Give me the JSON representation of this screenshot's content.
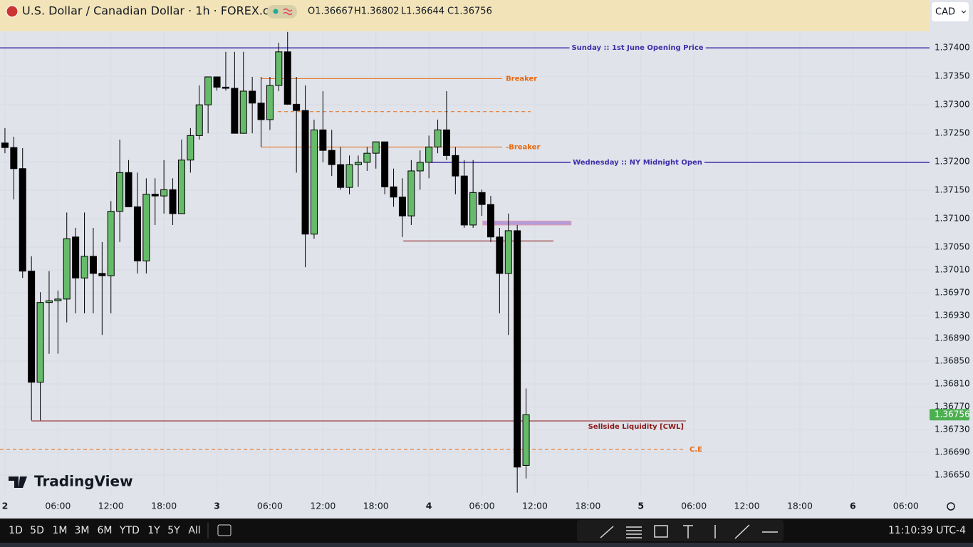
{
  "header": {
    "title": "U.S. Dollar / Canadian Dollar · 1h · FOREX.com",
    "ohlc": [
      "O1.36667",
      "H1.36802",
      "L1.36644",
      "C1.36756"
    ],
    "currency": "CAD"
  },
  "watermark": "TradingView",
  "toolbar": {
    "periods": [
      "1D",
      "5D",
      "1M",
      "3M",
      "6M",
      "YTD",
      "1Y",
      "5Y",
      "All"
    ],
    "clock": "11:10:39 UTC-4"
  },
  "chart_data": {
    "type": "candlestick",
    "up_color": "#66bb6a",
    "down_color": "#000000",
    "grid": true,
    "x": [
      0,
      1,
      2,
      3,
      4,
      5,
      6,
      7,
      8,
      9,
      10,
      11,
      12,
      13,
      14,
      15,
      16,
      17,
      18,
      19,
      20,
      21,
      22,
      23,
      24,
      25,
      26,
      27,
      28,
      29,
      30,
      31,
      32,
      33,
      34,
      35,
      36,
      37,
      38,
      39,
      40,
      41,
      42,
      43,
      44,
      45,
      46,
      47,
      48,
      49,
      50,
      51,
      52,
      53,
      54,
      55,
      56,
      57,
      58,
      59
    ],
    "ohlc": [
      [
        1.37233,
        1.37259,
        1.37215,
        1.37225
      ],
      [
        1.37225,
        1.37244,
        1.37134,
        1.37188
      ],
      [
        1.37188,
        1.37224,
        1.36996,
        1.37008
      ],
      [
        1.37008,
        1.37034,
        1.36746,
        1.36813
      ],
      [
        1.36813,
        1.36971,
        1.36746,
        1.36953
      ],
      [
        1.36953,
        1.37008,
        1.36863,
        1.36956
      ],
      [
        1.36956,
        1.36974,
        1.36863,
        1.36959
      ],
      [
        1.36959,
        1.37111,
        1.36918,
        1.37065
      ],
      [
        1.37068,
        1.37084,
        1.36934,
        1.36996
      ],
      [
        1.36996,
        1.37111,
        1.36934,
        1.37034
      ],
      [
        1.37034,
        1.37084,
        1.36934,
        1.37004
      ],
      [
        1.37004,
        1.37059,
        1.36896,
        1.37
      ],
      [
        1.37,
        1.37131,
        1.36934,
        1.37113
      ],
      [
        1.37113,
        1.37239,
        1.37059,
        1.37181
      ],
      [
        1.37181,
        1.37203,
        1.37121,
        1.37121
      ],
      [
        1.37121,
        1.37181,
        1.37004,
        1.37026
      ],
      [
        1.37026,
        1.37171,
        1.37004,
        1.37143
      ],
      [
        1.37143,
        1.37171,
        1.37089,
        1.3714
      ],
      [
        1.3714,
        1.37203,
        1.37109,
        1.37151
      ],
      [
        1.37151,
        1.37171,
        1.37089,
        1.37109
      ],
      [
        1.37109,
        1.37239,
        1.37109,
        1.37203
      ],
      [
        1.37203,
        1.37259,
        1.37181,
        1.37246
      ],
      [
        1.37246,
        1.37334,
        1.37239,
        1.373
      ],
      [
        1.373,
        1.37349,
        1.3725,
        1.37349
      ],
      [
        1.37349,
        1.37349,
        1.37325,
        1.37331
      ],
      [
        1.37331,
        1.37393,
        1.37325,
        1.37329
      ],
      [
        1.37329,
        1.37393,
        1.3725,
        1.3725
      ],
      [
        1.3725,
        1.37393,
        1.3725,
        1.37324
      ],
      [
        1.37324,
        1.37349,
        1.3725,
        1.37303
      ],
      [
        1.37303,
        1.37349,
        1.37226,
        1.37274
      ],
      [
        1.37274,
        1.37349,
        1.37256,
        1.37334
      ],
      [
        1.37334,
        1.37409,
        1.37324,
        1.37393
      ],
      [
        1.37393,
        1.37428,
        1.373,
        1.37301
      ],
      [
        1.37301,
        1.37349,
        1.37181,
        1.3729
      ],
      [
        1.3729,
        1.37334,
        1.37015,
        1.37073
      ],
      [
        1.37073,
        1.37274,
        1.37065,
        1.37256
      ],
      [
        1.37256,
        1.37324,
        1.37199,
        1.3722
      ],
      [
        1.3722,
        1.37256,
        1.37175,
        1.37195
      ],
      [
        1.37195,
        1.37226,
        1.37151,
        1.37155
      ],
      [
        1.37155,
        1.37211,
        1.37143,
        1.37195
      ],
      [
        1.37195,
        1.37211,
        1.37156,
        1.37199
      ],
      [
        1.37199,
        1.37226,
        1.37184,
        1.37215
      ],
      [
        1.37215,
        1.37235,
        1.37188,
        1.37235
      ],
      [
        1.37235,
        1.37235,
        1.37143,
        1.37156
      ],
      [
        1.37156,
        1.37188,
        1.37121,
        1.37138
      ],
      [
        1.37138,
        1.37171,
        1.37068,
        1.37105
      ],
      [
        1.37105,
        1.37203,
        1.37089,
        1.37184
      ],
      [
        1.37184,
        1.3722,
        1.37151,
        1.37199
      ],
      [
        1.37199,
        1.37246,
        1.37171,
        1.37226
      ],
      [
        1.37226,
        1.37274,
        1.37215,
        1.37256
      ],
      [
        1.37256,
        1.37324,
        1.37203,
        1.37211
      ],
      [
        1.37211,
        1.37226,
        1.37143,
        1.37175
      ],
      [
        1.37175,
        1.37203,
        1.37084,
        1.37089
      ],
      [
        1.37089,
        1.37203,
        1.37084,
        1.37146
      ],
      [
        1.37146,
        1.37151,
        1.37105,
        1.37125
      ],
      [
        1.37125,
        1.3714,
        1.37059,
        1.37068
      ],
      [
        1.37068,
        1.37084,
        1.36934,
        1.37004
      ],
      [
        1.37004,
        1.37109,
        1.36896,
        1.37079
      ],
      [
        1.37079,
        1.37089,
        1.36619,
        1.36664
      ],
      [
        1.36667,
        1.36802,
        1.36644,
        1.36756
      ]
    ],
    "xlim": [
      -0.56,
      104.68
    ],
    "xticks": [
      {
        "value": 0,
        "label": "2"
      },
      {
        "value": 6,
        "label": "06:00"
      },
      {
        "value": 12,
        "label": "12:00"
      },
      {
        "value": 18,
        "label": "18:00"
      },
      {
        "value": 24,
        "label": "3"
      },
      {
        "value": 30,
        "label": "06:00"
      },
      {
        "value": 36,
        "label": "12:00"
      },
      {
        "value": 42,
        "label": "18:00"
      },
      {
        "value": 48,
        "label": "4"
      },
      {
        "value": 54,
        "label": "06:00"
      },
      {
        "value": 60,
        "label": "12:00"
      },
      {
        "value": 66,
        "label": "18:00"
      },
      {
        "value": 72,
        "label": "5"
      },
      {
        "value": 78,
        "label": "06:00"
      },
      {
        "value": 84,
        "label": "12:00"
      },
      {
        "value": 90,
        "label": "18:00"
      },
      {
        "value": 96,
        "label": "6"
      },
      {
        "value": 102,
        "label": "06:00"
      }
    ],
    "ylim": [
      1.36615,
      1.37429
    ],
    "yticks": [
      {
        "value": 1.374,
        "label": "1.37400"
      },
      {
        "value": 1.3735,
        "label": "1.37350"
      },
      {
        "value": 1.373,
        "label": "1.37300"
      },
      {
        "value": 1.3725,
        "label": "1.37250"
      },
      {
        "value": 1.372,
        "label": "1.37200"
      },
      {
        "value": 1.3715,
        "label": "1.37150"
      },
      {
        "value": 1.371,
        "label": "1.37100"
      },
      {
        "value": 1.3705,
        "label": "1.37050"
      },
      {
        "value": 1.3701,
        "label": "1.37010"
      },
      {
        "value": 1.3697,
        "label": "1.36970"
      },
      {
        "value": 1.3693,
        "label": "1.36930"
      },
      {
        "value": 1.3689,
        "label": "1.36890"
      },
      {
        "value": 1.3685,
        "label": "1.36850"
      },
      {
        "value": 1.3681,
        "label": "1.36810"
      },
      {
        "value": 1.3677,
        "label": "1.36770"
      },
      {
        "value": 1.3673,
        "label": "1.36730"
      },
      {
        "value": 1.3669,
        "label": "1.36690"
      },
      {
        "value": 1.3665,
        "label": "1.36650"
      }
    ],
    "last_price": {
      "value": 1.36756,
      "label": "1.36756"
    },
    "levels": [
      {
        "label": "Sunday :: 1st June Opening Price",
        "price": 1.374,
        "x": [
          -0.56,
          104.68
        ],
        "color": "#3f2fa8",
        "style": "solid",
        "label_position": "middle"
      },
      {
        "label": "Breaker",
        "price": 1.37346,
        "x": [
          29.0,
          56.3
        ],
        "color": "#e8690f",
        "style": "solid",
        "label_position": "right"
      },
      {
        "price": 1.37288,
        "x": [
          30.9,
          59.5
        ],
        "color": "#e8690f",
        "style": "dashed"
      },
      {
        "label": "-Breaker",
        "price": 1.37226,
        "x": [
          29.0,
          56.3
        ],
        "color": "#e8690f",
        "style": "solid",
        "label_position": "right"
      },
      {
        "label": "Wednesday :: NY Midnight Open",
        "price": 1.37199,
        "x": [
          48.2,
          104.68
        ],
        "color": "#3f2fa8",
        "style": "solid",
        "label_position": "middle"
      },
      {
        "price": 1.37061,
        "x": [
          45.1,
          62.1
        ],
        "color": "#8b1a1a",
        "style": "solid"
      },
      {
        "label": "Sellside Liquidity [CWL]",
        "price": 1.36745,
        "x": [
          3.0,
          77.1
        ],
        "color": "#8b1a1a",
        "style": "solid",
        "label_position": "below"
      },
      {
        "label": "C.E",
        "price": 1.36695,
        "x": [
          -0.56,
          77.1
        ],
        "color": "#e8690f",
        "style": "dashed",
        "label_position": "right"
      }
    ],
    "zones": [
      {
        "prices": [
          1.37096,
          1.37089
        ],
        "x": [
          54.1,
          64.1
        ],
        "color": "#b39ddb"
      }
    ]
  }
}
